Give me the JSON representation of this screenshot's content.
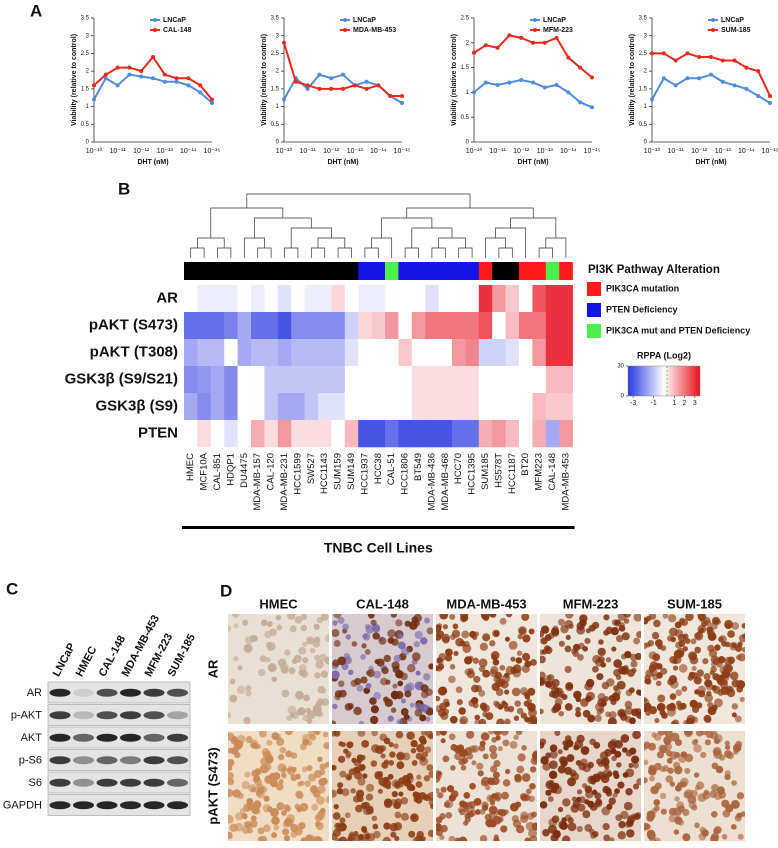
{
  "panels": [
    "A",
    "B",
    "C",
    "D"
  ],
  "chart_data": [
    {
      "type": "line",
      "xlabel": "DHT (nM)",
      "ylabel": "Viability (relative to control)",
      "categories": [
        "10⁻¹⁰",
        null,
        "10⁻¹¹",
        null,
        "10⁻¹²",
        null,
        "10⁻¹³",
        null,
        "10⁻¹⁴",
        null,
        "10⁻¹⁵"
      ],
      "ylim": [
        0,
        3.5
      ],
      "yticks": [
        0,
        0.5,
        1,
        1.5,
        2,
        2.5,
        3,
        3.5
      ],
      "series": [
        {
          "name": "LNCaP",
          "color": "#4f8bdc",
          "values": [
            1.2,
            1.8,
            1.6,
            1.9,
            1.85,
            1.8,
            1.7,
            1.7,
            1.6,
            1.4,
            1.1
          ]
        },
        {
          "name": "CAL-148",
          "color": "#e8291c",
          "values": [
            1.6,
            1.9,
            2.1,
            2.1,
            2.0,
            2.4,
            1.9,
            1.8,
            1.8,
            1.6,
            1.2
          ]
        }
      ]
    },
    {
      "type": "line",
      "xlabel": "DHT (nM)",
      "ylabel": "Viability (relative to control)",
      "categories": [
        "10⁻¹⁰",
        null,
        "10⁻¹¹",
        null,
        "10⁻¹²",
        null,
        "10⁻¹³",
        null,
        "10⁻¹⁴",
        null,
        "10⁻¹⁵"
      ],
      "ylim": [
        0,
        3.5
      ],
      "yticks": [
        0,
        0.5,
        1,
        1.5,
        2,
        2.5,
        3,
        3.5
      ],
      "series": [
        {
          "name": "LNCaP",
          "color": "#4f8bdc",
          "values": [
            1.2,
            1.8,
            1.5,
            1.9,
            1.8,
            1.9,
            1.6,
            1.7,
            1.6,
            1.3,
            1.1
          ]
        },
        {
          "name": "MDA-MB-453",
          "color": "#e8291c",
          "values": [
            2.8,
            1.7,
            1.6,
            1.5,
            1.5,
            1.5,
            1.6,
            1.5,
            1.6,
            1.3,
            1.3
          ]
        }
      ]
    },
    {
      "type": "line",
      "xlabel": "DHT (nM)",
      "ylabel": "Viability (relative to control)",
      "categories": [
        "10⁻¹⁰",
        null,
        "10⁻¹¹",
        null,
        "10⁻¹²",
        null,
        "10⁻¹³",
        null,
        "10⁻¹⁴",
        null,
        "10⁻¹⁵"
      ],
      "ylim": [
        0,
        2.5
      ],
      "yticks": [
        0,
        0.5,
        1,
        1.5,
        2,
        2.5
      ],
      "series": [
        {
          "name": "LNCaP",
          "color": "#4f8bdc",
          "values": [
            1.0,
            1.2,
            1.15,
            1.2,
            1.25,
            1.2,
            1.1,
            1.15,
            1.0,
            0.8,
            0.7
          ]
        },
        {
          "name": "MFM-223",
          "color": "#e8291c",
          "values": [
            1.8,
            1.95,
            1.9,
            2.15,
            2.1,
            2.0,
            2.0,
            2.1,
            1.7,
            1.5,
            1.3
          ]
        }
      ]
    },
    {
      "type": "line",
      "xlabel": "DHT (nM)",
      "ylabel": "Viability (relative to control)",
      "categories": [
        "10⁻¹⁰",
        null,
        "10⁻¹¹",
        null,
        "10⁻¹²",
        null,
        "10⁻¹³",
        null,
        "10⁻¹⁴",
        null,
        "10⁻¹⁵"
      ],
      "ylim": [
        0,
        3.5
      ],
      "yticks": [
        0,
        0.5,
        1,
        1.5,
        2,
        2.5,
        3,
        3.5
      ],
      "series": [
        {
          "name": "LNCaP",
          "color": "#4f8bdc",
          "values": [
            1.2,
            1.8,
            1.6,
            1.8,
            1.8,
            1.9,
            1.7,
            1.6,
            1.5,
            1.3,
            1.1
          ]
        },
        {
          "name": "SUM-185",
          "color": "#e8291c",
          "values": [
            2.5,
            2.5,
            2.3,
            2.5,
            2.4,
            2.4,
            2.3,
            2.3,
            2.1,
            2.0,
            1.3
          ]
        }
      ]
    },
    {
      "type": "heatmap",
      "xlabel": "TNBC Cell Lines",
      "columns": [
        "HMEC",
        "MCF10A",
        "CAL-851",
        "HDQP1",
        "DU4475",
        "MDA-MB-157",
        "CAL-120",
        "MDA-MB-231",
        "HCC1599",
        "SW527",
        "HCC1143",
        "SUM159",
        "SUM149",
        "HCC1937",
        "HCC38",
        "CAL-51",
        "HCC1806",
        "BT549",
        "MDA-MB-436",
        "MDA-MB-468",
        "HCC70",
        "HCC1395",
        "SUM185",
        "HS578T",
        "HCC1187",
        "BT20",
        "MFM223",
        "CAL-148",
        "MDA-MB-453"
      ],
      "rows": [
        "AR",
        "pAKT (S473)",
        "pAKT (T308)",
        "GSK3β (S9/S21)",
        "GSK3β (S9)",
        "PTEN"
      ],
      "values": [
        [
          0,
          -0.3,
          -0.3,
          -0.3,
          0,
          -0.3,
          0,
          -0.5,
          0,
          -0.3,
          -0.3,
          0.6,
          0,
          -0.3,
          -0.3,
          0,
          0,
          0,
          -0.5,
          0,
          0,
          0,
          3,
          1.5,
          0.8,
          0,
          2.5,
          3,
          3
        ],
        [
          -2.5,
          -2.5,
          -2.5,
          -2.2,
          -1.5,
          -2.5,
          -2.5,
          -3,
          -2,
          -2,
          -2,
          -2,
          -0.8,
          0.6,
          0.8,
          1.5,
          0,
          1.5,
          2,
          2,
          2,
          2,
          2.5,
          0,
          1,
          2,
          2,
          3,
          3
        ],
        [
          -1.5,
          -1.2,
          -1.2,
          0,
          -1.5,
          -1.2,
          -1.2,
          -1.5,
          -1.2,
          -1.2,
          -1.2,
          -1.2,
          -0.5,
          0,
          0,
          0,
          0.8,
          0,
          0,
          0,
          1.5,
          1.8,
          -0.8,
          -0.8,
          -0.5,
          0,
          1.5,
          3,
          3
        ],
        [
          -2,
          -1.8,
          -1.5,
          -2,
          0,
          0,
          -1,
          -1,
          -1,
          -1,
          -1,
          -1,
          0,
          0,
          0,
          0,
          0,
          0.5,
          0.5,
          0.5,
          0.5,
          0.5,
          0,
          0,
          0,
          0,
          0,
          1,
          1
        ],
        [
          -1.5,
          -2,
          -1.5,
          -2,
          0,
          0,
          -1,
          -1.5,
          -1.5,
          -1,
          -0.5,
          -0.5,
          0,
          0,
          0,
          0,
          0,
          0.5,
          0.5,
          0.5,
          0.5,
          0.5,
          0,
          0,
          0,
          0,
          1,
          0.8,
          0.8
        ],
        [
          0,
          0.5,
          0,
          -0.5,
          0,
          1.2,
          0.5,
          1.5,
          0.5,
          0.5,
          0.5,
          0,
          1,
          -3,
          -3,
          -2.5,
          -3,
          -3,
          -3,
          -3,
          -2.5,
          -2.5,
          1.2,
          1.5,
          1,
          0,
          1.2,
          -1.5,
          1.5
        ]
      ],
      "alteration_title": "PI3K Pathway Alteration",
      "legend": [
        {
          "name": "PIK3CA mutation",
          "color": "#ff1a1a"
        },
        {
          "name": "PTEN Deficiency",
          "color": "#1414e6"
        },
        {
          "name": "PIK3CA mut and PTEN Deficiency",
          "color": "#4cf04c"
        }
      ],
      "alteration": [
        null,
        null,
        null,
        null,
        null,
        null,
        null,
        null,
        null,
        null,
        null,
        null,
        null,
        "PTEN Deficiency",
        "PTEN Deficiency",
        "PIK3CA mut and PTEN Deficiency",
        "PTEN Deficiency",
        "PTEN Deficiency",
        "PTEN Deficiency",
        "PTEN Deficiency",
        "PTEN Deficiency",
        "PTEN Deficiency",
        "PIK3CA mutation",
        null,
        null,
        "PIK3CA mutation",
        "PIK3CA mutation",
        "PIK3CA mut and PTEN Deficiency",
        "PIK3CA mutation"
      ],
      "colorbar_title": "RPPA (Log2)",
      "clim": [
        -3.5,
        3.5
      ],
      "cticks": [
        -3,
        -1,
        1,
        2,
        3
      ],
      "count_ticks": [
        30,
        0
      ]
    }
  ],
  "blot": {
    "lanes": [
      "LNCaP",
      "HMEC",
      "CAL-148",
      "MDA-MB-453",
      "MFM-223",
      "SUM-185"
    ],
    "proteins": [
      "AR",
      "p-AKT",
      "AKT",
      "p-S6",
      "S6",
      "GAPDH"
    ]
  },
  "ihc": {
    "columns": [
      "HMEC",
      "CAL-148",
      "MDA-MB-453",
      "MFM-223",
      "SUM-185"
    ],
    "rows": [
      "AR",
      "pAKT (S473)"
    ]
  }
}
